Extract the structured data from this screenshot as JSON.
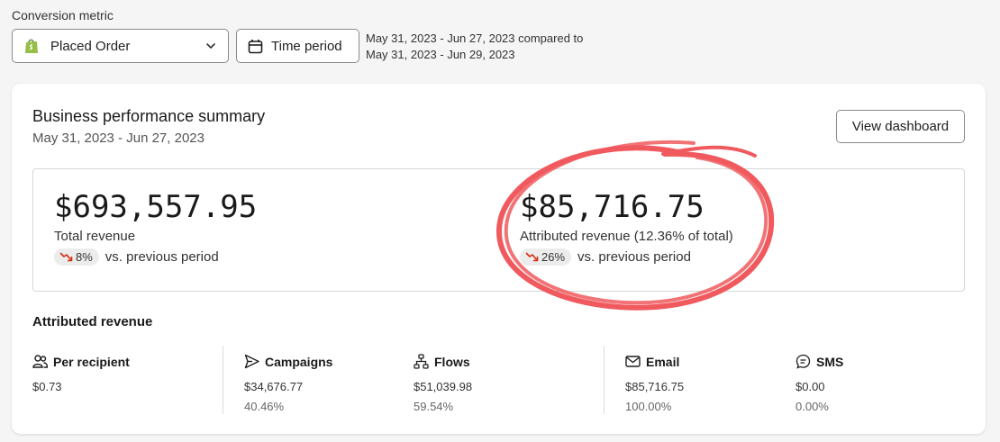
{
  "conversion_metric": {
    "label": "Conversion metric",
    "selected": "Placed Order",
    "icon": "shopify-bag-icon"
  },
  "time_period": {
    "button_label": "Time period",
    "range_line1": "May 31, 2023 - Jun 27, 2023 compared to",
    "range_line2": "May 31, 2023 - Jun 29, 2023"
  },
  "summary": {
    "title": "Business performance summary",
    "subtitle": "May 31, 2023 - Jun 27, 2023",
    "view_button": "View dashboard",
    "total": {
      "value": "$693,557.95",
      "label": "Total revenue",
      "change": "8%",
      "change_suffix": "vs. previous period",
      "trend": "down"
    },
    "attributed": {
      "value": "$85,716.75",
      "label": "Attributed revenue (12.36% of total)",
      "change": "26%",
      "change_suffix": "vs. previous period",
      "trend": "down"
    }
  },
  "attributed_revenue": {
    "title": "Attributed revenue",
    "stats": [
      {
        "label": "Per recipient",
        "icon": "people-icon",
        "value": "$0.73",
        "pct": ""
      },
      {
        "label": "Campaigns",
        "icon": "send-icon",
        "value": "$34,676.77",
        "pct": "40.46%"
      },
      {
        "label": "Flows",
        "icon": "flow-icon",
        "value": "$51,039.98",
        "pct": "59.54%"
      },
      {
        "label": "Email",
        "icon": "envelope-icon",
        "value": "$85,716.75",
        "pct": "100.00%"
      },
      {
        "label": "SMS",
        "icon": "sms-icon",
        "value": "$0.00",
        "pct": "0.00%"
      }
    ]
  },
  "colors": {
    "annotation_circle": "#f05a5e",
    "trend_down": "#d72c0d"
  }
}
